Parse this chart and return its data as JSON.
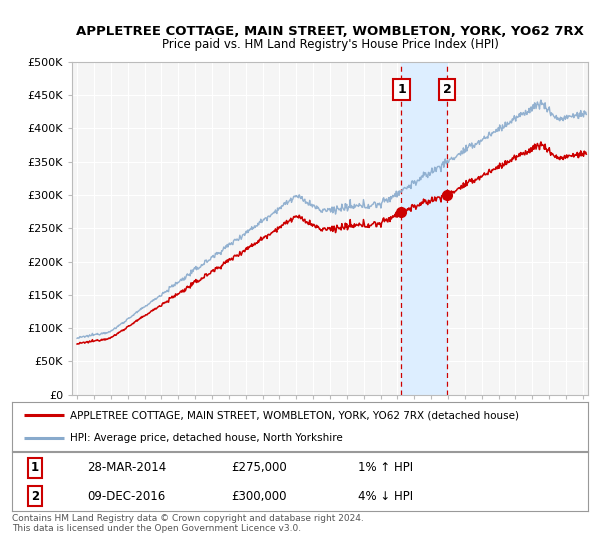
{
  "title": "APPLETREE COTTAGE, MAIN STREET, WOMBLETON, YORK, YO62 7RX",
  "subtitle": "Price paid vs. HM Land Registry's House Price Index (HPI)",
  "ylabel_ticks": [
    "£0",
    "£50K",
    "£100K",
    "£150K",
    "£200K",
    "£250K",
    "£300K",
    "£350K",
    "£400K",
    "£450K",
    "£500K"
  ],
  "ytick_values": [
    0,
    50000,
    100000,
    150000,
    200000,
    250000,
    300000,
    350000,
    400000,
    450000,
    500000
  ],
  "ylim": [
    0,
    500000
  ],
  "xlim_start": 1994.7,
  "xlim_end": 2025.3,
  "legend1": "APPLETREE COTTAGE, MAIN STREET, WOMBLETON, YORK, YO62 7RX (detached house)",
  "legend2": "HPI: Average price, detached house, North Yorkshire",
  "sale1_label": "1",
  "sale1_date": "28-MAR-2014",
  "sale1_price": "£275,000",
  "sale1_hpi": "1% ↑ HPI",
  "sale1_year": 2014.24,
  "sale1_value": 275000,
  "sale2_label": "2",
  "sale2_date": "09-DEC-2016",
  "sale2_price": "£300,000",
  "sale2_hpi": "4% ↓ HPI",
  "sale2_year": 2016.94,
  "sale2_value": 300000,
  "footer": "Contains HM Land Registry data © Crown copyright and database right 2024.\nThis data is licensed under the Open Government Licence v3.0.",
  "background_color": "#ffffff",
  "plot_bg_color": "#f5f5f5",
  "line_color_red": "#cc0000",
  "line_color_blue": "#88aacc",
  "shaded_region_color": "#ddeeff",
  "grid_color": "#ffffff"
}
